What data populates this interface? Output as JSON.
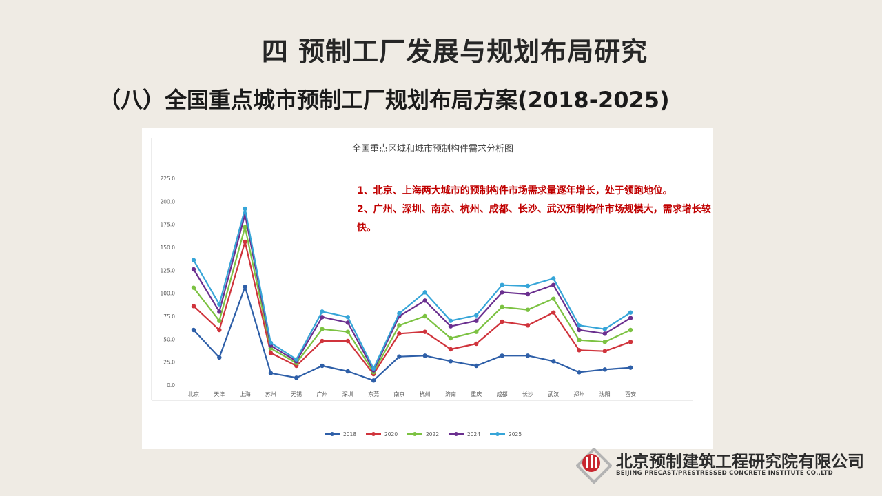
{
  "slide": {
    "title": "四  预制工厂发展与规划布局研究",
    "subtitle": "（八）全国重点城市预制工厂规划布局方案(2018-2025)"
  },
  "annotation": {
    "line1": "1、北京、上海两大城市的预制构件市场需求量逐年增长，处于领跑地位。",
    "line2": "2、广州、深圳、南京、杭州、成都、长沙、武汉预制构件市场规模大，需求增长较快。"
  },
  "logo": {
    "name": "北京预制建筑工程研究院有限公司",
    "english": "BEIJING PRECAST/PRESTRESSED CONCRETE INSTITUTE CO.,LTD"
  },
  "chart_data": {
    "type": "line",
    "title": "全国重点区域和城市预制构件需求分析图",
    "xlabel": "",
    "ylabel": "",
    "ylim": [
      0,
      225
    ],
    "yticks": [
      "0.0",
      "25.0",
      "50.0",
      "75.0",
      "100.0",
      "125.0",
      "150.0",
      "175.0",
      "200.0",
      "225.0"
    ],
    "grid": false,
    "legend_position": "bottom",
    "categories": [
      "北京",
      "天津",
      "上海",
      "苏州",
      "无锡",
      "广州",
      "深圳",
      "东莞",
      "南京",
      "杭州",
      "济南",
      "重庆",
      "成都",
      "长沙",
      "武汉",
      "郑州",
      "沈阳",
      "西安"
    ],
    "series": [
      {
        "name": "2018",
        "color": "#2e5fa8",
        "values": [
          60,
          30,
          107,
          13,
          8,
          21,
          15,
          5,
          31,
          32,
          26,
          21,
          32,
          32,
          26,
          14,
          17,
          19
        ]
      },
      {
        "name": "2020",
        "color": "#d0343c",
        "values": [
          86,
          60,
          156,
          35,
          21,
          48,
          48,
          12,
          56,
          58,
          39,
          45,
          69,
          65,
          79,
          38,
          37,
          47
        ]
      },
      {
        "name": "2022",
        "color": "#7cc242",
        "values": [
          106,
          70,
          172,
          40,
          24,
          61,
          58,
          14,
          65,
          75,
          51,
          58,
          85,
          82,
          94,
          49,
          47,
          60
        ]
      },
      {
        "name": "2024",
        "color": "#6a2f8f",
        "values": [
          126,
          80,
          186,
          43,
          26,
          74,
          68,
          16,
          75,
          92,
          64,
          70,
          101,
          99,
          109,
          60,
          56,
          73
        ]
      },
      {
        "name": "2025",
        "color": "#36a5d8",
        "values": [
          136,
          88,
          192,
          46,
          28,
          80,
          74,
          18,
          78,
          101,
          70,
          76,
          109,
          108,
          116,
          65,
          61,
          79
        ]
      }
    ]
  }
}
